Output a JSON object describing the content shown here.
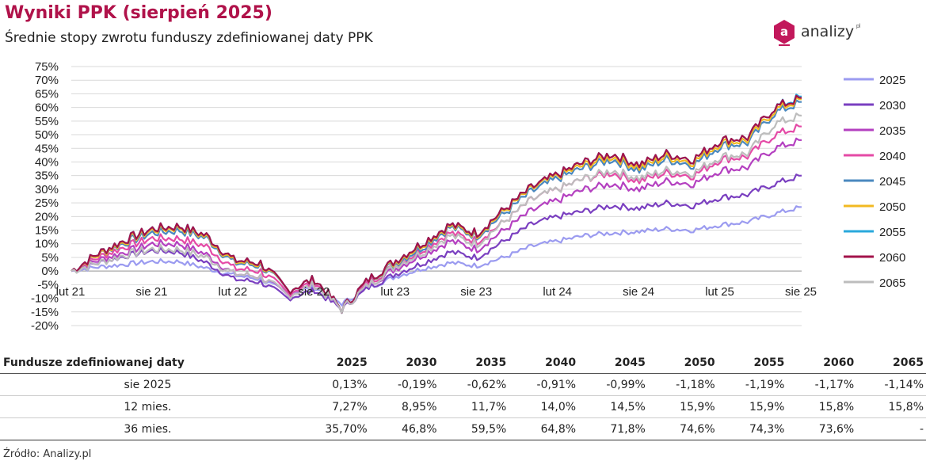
{
  "header": {
    "title": "Wyniki PPK (sierpień 2025)",
    "subtitle": "Średnie stopy zwrotu funduszy zdefiniowanej daty PPK"
  },
  "logo": {
    "text": "analizy",
    "suffix": "pl",
    "badge_letter": "a",
    "color": "#c2185b"
  },
  "chart_data": {
    "type": "line",
    "ylim": [
      -20,
      75
    ],
    "yticks": [
      "75%",
      "70%",
      "65%",
      "60%",
      "55%",
      "50%",
      "45%",
      "40%",
      "35%",
      "30%",
      "25%",
      "20%",
      "15%",
      "10%",
      "5%",
      "0%",
      "-5%",
      "-10%",
      "-15%",
      "-20%"
    ],
    "xticks": [
      "lut 21",
      "sie 21",
      "lut 22",
      "sie 22",
      "lut 23",
      "sie 23",
      "lut 24",
      "sie 24",
      "lut 25",
      "sie 25"
    ],
    "grid": true,
    "legend": "right",
    "x": [
      "2021-02",
      "2021-04",
      "2021-06",
      "2021-08",
      "2021-10",
      "2021-12",
      "2022-02",
      "2022-04",
      "2022-06",
      "2022-08",
      "2022-10",
      "2022-12",
      "2023-02",
      "2023-04",
      "2023-06",
      "2023-08",
      "2023-10",
      "2023-12",
      "2024-02",
      "2024-04",
      "2024-06",
      "2024-08",
      "2024-10",
      "2024-12",
      "2025-02",
      "2025-04",
      "2025-06",
      "2025-08"
    ],
    "series": [
      {
        "name": "2025",
        "color": "#9b9bf0",
        "values": [
          0,
          1.5,
          2.5,
          3.5,
          3.5,
          1,
          -1.5,
          -3,
          -8,
          -6,
          -12,
          -6,
          -2,
          1,
          3,
          2,
          5,
          9,
          11,
          13,
          14,
          14.5,
          15.5,
          15,
          17,
          18,
          21,
          23.5
        ]
      },
      {
        "name": "2030",
        "color": "#7a3fc0",
        "values": [
          0,
          3,
          5.5,
          7.5,
          7,
          3,
          -3,
          -4,
          -10,
          -7,
          -14,
          -6,
          -1,
          3,
          7,
          5,
          11,
          17,
          20,
          22,
          24,
          23,
          25,
          24,
          27,
          28,
          32,
          35
        ]
      },
      {
        "name": "2035",
        "color": "#b440c0",
        "values": [
          0,
          4,
          7,
          10,
          10,
          6,
          -1,
          -2,
          -9,
          -5,
          -14,
          -5,
          1,
          6,
          11,
          8,
          15,
          22,
          26,
          30,
          32,
          30,
          33,
          32,
          37,
          38,
          45,
          48
        ]
      },
      {
        "name": "2040",
        "color": "#e44aa6",
        "values": [
          0,
          5,
          9,
          12,
          12,
          9,
          1,
          0,
          -8,
          -4,
          -14,
          -4,
          2,
          8,
          14,
          11,
          18,
          26,
          30,
          34,
          36,
          33,
          36,
          35,
          41,
          42,
          50,
          53
        ]
      },
      {
        "name": "2045",
        "color": "#4a88bf",
        "values": [
          0,
          6,
          10.5,
          14,
          15,
          12,
          3,
          2,
          -7,
          -3,
          -14,
          -3,
          3,
          9,
          16,
          13,
          21,
          29,
          34,
          38,
          41,
          37,
          41,
          39,
          46,
          47,
          58,
          62
        ]
      },
      {
        "name": "2050",
        "color": "#f2b922",
        "values": [
          0,
          6,
          11,
          15,
          16,
          12.5,
          3.5,
          2.5,
          -7,
          -3,
          -14,
          -3,
          3.5,
          10,
          16.5,
          13.5,
          22,
          30,
          35,
          39,
          42,
          38,
          42,
          40,
          47,
          48,
          59,
          63
        ]
      },
      {
        "name": "2055",
        "color": "#29a8dc",
        "values": [
          0,
          6.5,
          11.5,
          15.5,
          16.5,
          13,
          4,
          3,
          -7,
          -3,
          -14,
          -3,
          4,
          10.5,
          17,
          14,
          22.5,
          30.5,
          35.5,
          40,
          43,
          39,
          43,
          41,
          48,
          49,
          60,
          64
        ]
      },
      {
        "name": "2060",
        "color": "#a3124a",
        "values": [
          0,
          6.5,
          11.5,
          15.5,
          16.5,
          13,
          4,
          3,
          -7,
          -3,
          -14,
          -3,
          4,
          10.5,
          17,
          14,
          22.5,
          30.5,
          35.5,
          40,
          43,
          39,
          43,
          41,
          48,
          49,
          60,
          63.5
        ]
      },
      {
        "name": "2065",
        "color": "#bdbdbd",
        "values": [
          0,
          3,
          6,
          8,
          8,
          5,
          -1,
          -2,
          -9,
          -5,
          -14,
          -5,
          2,
          7,
          13,
          10,
          18,
          26,
          30,
          34,
          37,
          34,
          37,
          36,
          42,
          43,
          54,
          57
        ]
      }
    ]
  },
  "table": {
    "header": [
      "Fundusze zdefiniowanej daty",
      "2025",
      "2030",
      "2035",
      "2040",
      "2045",
      "2050",
      "2055",
      "2060",
      "2065"
    ],
    "rows": [
      [
        "sie 2025",
        "0,13%",
        "-0,19%",
        "-0,62%",
        "-0,91%",
        "-0,99%",
        "-1,18%",
        "-1,19%",
        "-1,17%",
        "-1,14%"
      ],
      [
        "12 mies.",
        "7,27%",
        "8,95%",
        "11,7%",
        "14,0%",
        "14,5%",
        "15,9%",
        "15,9%",
        "15,8%",
        "15,8%"
      ],
      [
        "36 mies.",
        "35,70%",
        "46,8%",
        "59,5%",
        "64,8%",
        "71,8%",
        "74,6%",
        "74,3%",
        "73,6%",
        "-"
      ]
    ]
  },
  "source": "Źródło: Analizy.pl"
}
